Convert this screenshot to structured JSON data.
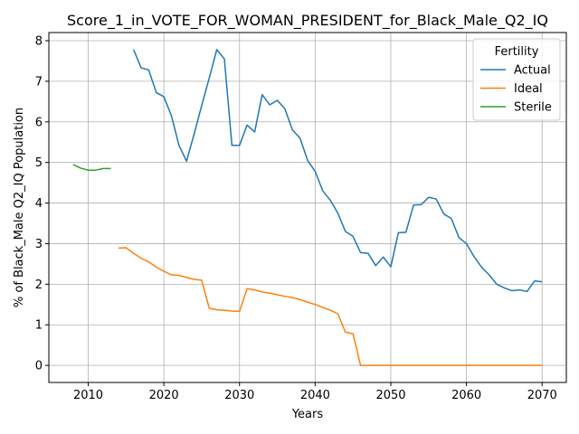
{
  "chart_data": {
    "type": "line",
    "title": "Score_1_in_VOTE_FOR_WOMAN_PRESIDENT_for_Black_Male_Q2_IQ",
    "xlabel": "Years",
    "ylabel": "% of Black_Male Q2_IQ Population",
    "xlim": [
      2004.8,
      2073.2
    ],
    "ylim": [
      -0.42,
      8.2
    ],
    "xticks": [
      2010,
      2020,
      2030,
      2040,
      2050,
      2060,
      2070
    ],
    "yticks": [
      0,
      1,
      2,
      3,
      4,
      5,
      6,
      7,
      8
    ],
    "grid": true,
    "legend": {
      "title": "Fertility",
      "position": "top-right"
    },
    "series": [
      {
        "name": "Actual",
        "color": "#1f77b4",
        "x": [
          2016,
          2017,
          2018,
          2019,
          2020,
          2021,
          2022,
          2023,
          2024,
          2025,
          2026,
          2027,
          2028,
          2029,
          2030,
          2031,
          2032,
          2033,
          2034,
          2035,
          2036,
          2037,
          2038,
          2039,
          2040,
          2041,
          2042,
          2043,
          2044,
          2045,
          2046,
          2047,
          2048,
          2049,
          2050,
          2051,
          2052,
          2053,
          2054,
          2055,
          2056,
          2057,
          2058,
          2059,
          2060,
          2061,
          2062,
          2063,
          2064,
          2065,
          2066,
          2067,
          2068,
          2069,
          2070
        ],
        "values": [
          7.78,
          7.33,
          7.28,
          6.72,
          6.62,
          6.15,
          5.42,
          5.03,
          5.7,
          6.4,
          7.08,
          7.78,
          7.55,
          5.42,
          5.42,
          5.92,
          5.75,
          6.67,
          6.42,
          6.53,
          6.32,
          5.8,
          5.6,
          5.05,
          4.78,
          4.3,
          4.07,
          3.75,
          3.3,
          3.18,
          2.78,
          2.76,
          2.46,
          2.67,
          2.43,
          3.27,
          3.28,
          3.95,
          3.96,
          4.14,
          4.1,
          3.73,
          3.62,
          3.15,
          3.0,
          2.68,
          2.42,
          2.23,
          2.0,
          1.91,
          1.84,
          1.86,
          1.82,
          2.08,
          2.06
        ]
      },
      {
        "name": "Ideal",
        "color": "#ff7f0e",
        "x": [
          2014,
          2015,
          2016,
          2017,
          2018,
          2019,
          2020,
          2021,
          2022,
          2023,
          2024,
          2025,
          2026,
          2027,
          2028,
          2029,
          2030,
          2031,
          2032,
          2033,
          2034,
          2035,
          2036,
          2037,
          2038,
          2039,
          2040,
          2041,
          2042,
          2043,
          2044,
          2045,
          2046,
          2047,
          2048,
          2049,
          2050,
          2051,
          2052,
          2053,
          2054,
          2055,
          2056,
          2057,
          2058,
          2059,
          2060,
          2061,
          2062,
          2063,
          2064,
          2065,
          2066,
          2067,
          2068,
          2069,
          2070
        ],
        "values": [
          2.89,
          2.9,
          2.76,
          2.64,
          2.55,
          2.42,
          2.32,
          2.23,
          2.22,
          2.17,
          2.12,
          2.1,
          1.41,
          1.37,
          1.36,
          1.34,
          1.33,
          1.89,
          1.86,
          1.81,
          1.78,
          1.74,
          1.7,
          1.67,
          1.62,
          1.56,
          1.5,
          1.43,
          1.36,
          1.27,
          0.82,
          0.78,
          0.0,
          0.0,
          0.0,
          0.0,
          0.0,
          0.0,
          0.0,
          0.0,
          0.0,
          0.0,
          0.0,
          0.0,
          0.0,
          0.0,
          0.0,
          0.0,
          0.0,
          0.0,
          0.0,
          0.0,
          0.0,
          0.0,
          0.0,
          0.0,
          0.0
        ]
      },
      {
        "name": "Sterile",
        "color": "#2ca02c",
        "x": [
          2008,
          2009,
          2010,
          2011,
          2012,
          2013
        ],
        "values": [
          4.95,
          4.86,
          4.81,
          4.81,
          4.85,
          4.85
        ]
      }
    ]
  }
}
